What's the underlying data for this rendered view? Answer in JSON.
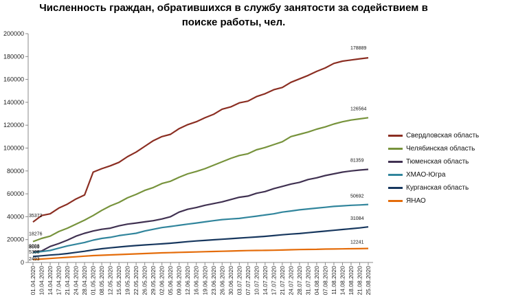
{
  "chart_data": {
    "type": "line",
    "title_lines": [
      "Численность граждан, обратившихся в службу занятости за содействием в",
      "поиске работы, чел."
    ],
    "xlabel": "",
    "ylabel": "",
    "ylim": [
      0,
      200000
    ],
    "yticks": [
      "0",
      "20000",
      "40000",
      "60000",
      "80000",
      "100000",
      "120000",
      "140000",
      "160000",
      "180000",
      "200000"
    ],
    "grid": false,
    "legend_position": "right",
    "x": [
      "01.04.2020",
      "10.04.2020",
      "14.04.2020",
      "17.04.2020",
      "21.04.2020",
      "24.04.2020",
      "28.04.2020",
      "01.05.2020",
      "08.05.2020",
      "12.05.2020",
      "15.05.2020",
      "19.05.2020",
      "22.05.2020",
      "26.05.2020",
      "29.05.2020",
      "02.06.2020",
      "05.06.2020",
      "09.06.2020",
      "12.06.2020",
      "16.06.2020",
      "19.06.2020",
      "23.06.2020",
      "26.06.2020",
      "30.06.2020",
      "03.07.2020",
      "07.07.2020",
      "10.07.2020",
      "14.07.2020",
      "17.07.2020",
      "21.07.2020",
      "24.07.2020",
      "28.07.2020",
      "31.07.2020",
      "04.08.2020",
      "07.08.2020",
      "11.08.2020",
      "14.08.2020",
      "18.08.2020",
      "21.08.2020",
      "25.08.2020"
    ],
    "x_tick_labels": [
      "01.04.2020",
      "10.04.2020",
      "14.04.2020",
      "17.04.2020",
      "21.04.2020",
      "24.04.2020",
      "28.04.2020",
      "01.05.2020",
      "08.05.2020",
      "12.05.2020",
      "15.05.2020",
      "19.05.2020",
      "22.05.2020",
      "26.05.2020",
      "29.05.2020",
      "02.06.2020",
      "05.06.2020",
      "09.06.2020",
      "12.06.2020",
      "16.06.2020",
      "19.06.2020",
      "23.06.2020",
      "26.06.2020",
      "30.06.2020",
      "03.07.2020",
      "07.07.2020",
      "10.07.2020",
      "14.07.2020",
      "17.07.2020",
      "21.07.2020",
      "24.07.2020",
      "28.07.2020",
      "31.07.2020",
      "04.08.2020",
      "07.08.2020",
      "11.08.2020",
      "14.08.2020",
      "18.08.2020",
      "21.08.2020",
      "25.08.2020"
    ],
    "series": [
      {
        "name": "Свердловская область",
        "color": "#8B2E22",
        "first_label": "35372",
        "last_label": "178889",
        "values": [
          35372,
          41000,
          42500,
          47500,
          51000,
          55500,
          59000,
          79000,
          82000,
          84500,
          87500,
          92500,
          96500,
          101500,
          106500,
          110000,
          112000,
          117000,
          120500,
          123000,
          126500,
          129500,
          134000,
          136000,
          139500,
          141000,
          145000,
          147500,
          151000,
          153000,
          157500,
          160500,
          163500,
          167000,
          170000,
          174000,
          176000,
          177000,
          178000,
          178889
        ]
      },
      {
        "name": "Челябинская область",
        "color": "#77933C",
        "first_label": "18276",
        "last_label": "126564",
        "values": [
          18276,
          21000,
          23000,
          27000,
          30000,
          33500,
          37000,
          41000,
          45500,
          49500,
          52500,
          56500,
          59500,
          63000,
          65500,
          69000,
          71000,
          74500,
          77500,
          79500,
          82000,
          85000,
          88000,
          91000,
          93500,
          95000,
          98500,
          100500,
          103000,
          105500,
          110000,
          112000,
          114000,
          116500,
          118500,
          121000,
          123000,
          124500,
          125500,
          126564
        ]
      },
      {
        "name": "Тюменская область",
        "color": "#403151",
        "first_label": "9203",
        "last_label": "81359",
        "values": [
          9203,
          10000,
          14000,
          16500,
          19500,
          23000,
          25500,
          27500,
          29000,
          30000,
          32000,
          33500,
          34500,
          35500,
          36500,
          38000,
          40000,
          44000,
          46500,
          48000,
          50000,
          51500,
          53000,
          55000,
          57000,
          58000,
          60500,
          62000,
          64500,
          66500,
          68500,
          70000,
          72500,
          74000,
          76000,
          77500,
          79000,
          80000,
          80800,
          81359
        ]
      },
      {
        "name": "ХМАО-Югра",
        "color": "#31859C",
        "first_label": "8569",
        "last_label": "50692",
        "values": [
          8569,
          9500,
          10500,
          12500,
          14500,
          16000,
          17500,
          19500,
          21000,
          22000,
          23500,
          24500,
          25500,
          27500,
          29000,
          30500,
          31500,
          32500,
          33500,
          34500,
          35500,
          36500,
          37500,
          38000,
          38500,
          39500,
          40500,
          41500,
          42500,
          44000,
          45000,
          46000,
          46800,
          47500,
          48200,
          49000,
          49500,
          50000,
          50300,
          50692
        ]
      },
      {
        "name": "Курганская область",
        "color": "#17375E",
        "first_label": "5308",
        "last_label": "31084",
        "values": [
          5308,
          5800,
          6500,
          7000,
          7800,
          8800,
          9800,
          11000,
          12000,
          12800,
          13500,
          14200,
          14800,
          15300,
          15800,
          16300,
          16800,
          17500,
          18200,
          18800,
          19300,
          19800,
          20300,
          20800,
          21300,
          21800,
          22300,
          22800,
          23500,
          24200,
          24800,
          25300,
          26000,
          26700,
          27400,
          28100,
          28800,
          29500,
          30200,
          31084
        ]
      },
      {
        "name": "ЯНАО",
        "color": "#E46C0A",
        "first_label": "2493",
        "last_label": "12241",
        "values": [
          2493,
          3000,
          3500,
          4000,
          4500,
          5000,
          5500,
          6000,
          6300,
          6600,
          6900,
          7200,
          7500,
          7800,
          8100,
          8400,
          8600,
          8800,
          9000,
          9200,
          9400,
          9600,
          9800,
          10000,
          10200,
          10400,
          10500,
          10600,
          10700,
          10900,
          11100,
          11300,
          11400,
          11500,
          11700,
          11800,
          11900,
          12000,
          12100,
          12241
        ]
      }
    ]
  }
}
